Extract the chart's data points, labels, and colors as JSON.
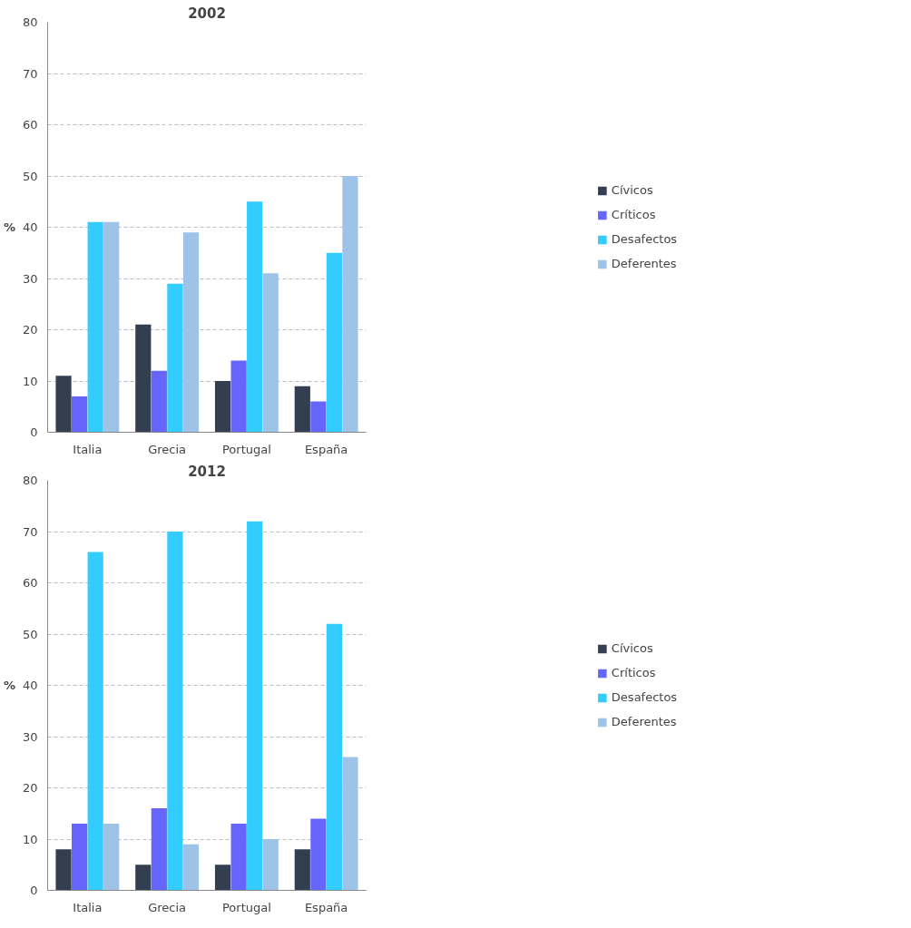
{
  "chart_data": [
    {
      "type": "bar",
      "title": "2002",
      "ylabel": "%",
      "categories": [
        "Italia",
        "Grecia",
        "Portugal",
        "España"
      ],
      "ylim": [
        0,
        80
      ],
      "yticks": [
        0,
        10,
        20,
        30,
        40,
        50,
        60,
        70,
        80
      ],
      "grid": "y",
      "legend": "right",
      "series": [
        {
          "name": "Cívicos",
          "color": "#333f50",
          "values": [
            11,
            21,
            10,
            9
          ]
        },
        {
          "name": "Críticos",
          "color": "#6666ff",
          "values": [
            7,
            12,
            14,
            6
          ]
        },
        {
          "name": "Desafectos",
          "color": "#33ccff",
          "values": [
            41,
            29,
            45,
            35
          ]
        },
        {
          "name": "Deferentes",
          "color": "#9dc3e6",
          "values": [
            41,
            39,
            31,
            50
          ]
        }
      ]
    },
    {
      "type": "bar",
      "title": "2012",
      "ylabel": "%",
      "categories": [
        "Italia",
        "Grecia",
        "Portugal",
        "España"
      ],
      "ylim": [
        0,
        80
      ],
      "yticks": [
        0,
        10,
        20,
        30,
        40,
        50,
        60,
        70,
        80
      ],
      "grid": "y",
      "legend": "right",
      "series": [
        {
          "name": "Cívicos",
          "color": "#333f50",
          "values": [
            8,
            5,
            5,
            8
          ]
        },
        {
          "name": "Críticos",
          "color": "#6666ff",
          "values": [
            13,
            16,
            13,
            14
          ]
        },
        {
          "name": "Desafectos",
          "color": "#33ccff",
          "values": [
            66,
            70,
            72,
            52
          ]
        },
        {
          "name": "Deferentes",
          "color": "#9dc3e6",
          "values": [
            13,
            9,
            10,
            26
          ]
        }
      ]
    }
  ]
}
